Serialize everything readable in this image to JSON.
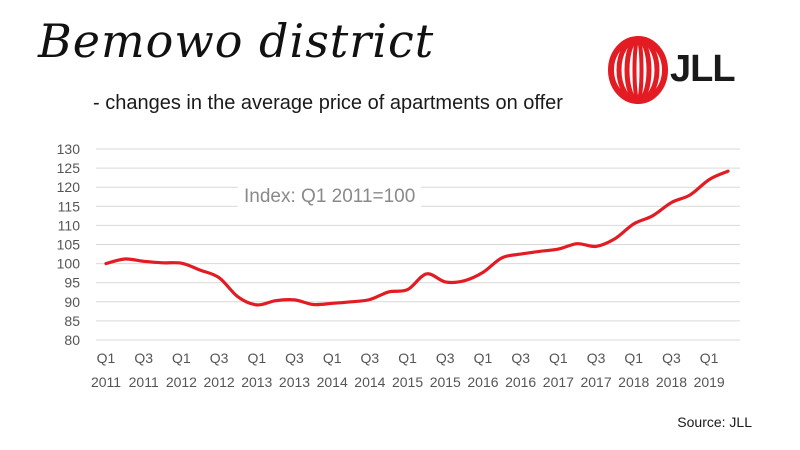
{
  "header": {
    "title": "Bemowo district",
    "subtitle": "- changes in the average price of apartments on offer"
  },
  "logo": {
    "text": "JLL",
    "icon": "jll-logo-icon",
    "color": "#e31b23"
  },
  "source": "Source: JLL",
  "chart_data": {
    "type": "line",
    "annotation": "Index: Q1 2011=100",
    "ylim": [
      80,
      130
    ],
    "yticks": [
      80,
      85,
      90,
      95,
      100,
      105,
      110,
      115,
      120,
      125,
      130
    ],
    "xtick_labels": [
      {
        "q": "Q1",
        "y": "2011"
      },
      {
        "q": "Q3",
        "y": "2011"
      },
      {
        "q": "Q1",
        "y": "2012"
      },
      {
        "q": "Q3",
        "y": "2012"
      },
      {
        "q": "Q1",
        "y": "2013"
      },
      {
        "q": "Q3",
        "y": "2013"
      },
      {
        "q": "Q1",
        "y": "2014"
      },
      {
        "q": "Q3",
        "y": "2014"
      },
      {
        "q": "Q1",
        "y": "2015"
      },
      {
        "q": "Q3",
        "y": "2015"
      },
      {
        "q": "Q1",
        "y": "2016"
      },
      {
        "q": "Q3",
        "y": "2016"
      },
      {
        "q": "Q1",
        "y": "2017"
      },
      {
        "q": "Q3",
        "y": "2017"
      },
      {
        "q": "Q1",
        "y": "2018"
      },
      {
        "q": "Q3",
        "y": "2018"
      },
      {
        "q": "Q1",
        "y": "2019"
      }
    ],
    "categories": [
      "Q1 2011",
      "Q2 2011",
      "Q3 2011",
      "Q4 2011",
      "Q1 2012",
      "Q2 2012",
      "Q3 2012",
      "Q4 2012",
      "Q1 2013",
      "Q2 2013",
      "Q3 2013",
      "Q4 2013",
      "Q1 2014",
      "Q2 2014",
      "Q3 2014",
      "Q4 2014",
      "Q1 2015",
      "Q2 2015",
      "Q3 2015",
      "Q4 2015",
      "Q1 2016",
      "Q2 2016",
      "Q3 2016",
      "Q4 2016",
      "Q1 2017",
      "Q2 2017",
      "Q3 2017",
      "Q4 2017",
      "Q1 2018",
      "Q2 2018",
      "Q3 2018",
      "Q4 2018",
      "Q1 2019",
      "Q2 2019"
    ],
    "series": [
      {
        "color": "#e31b23",
        "values": [
          100,
          101.2,
          100.6,
          100.2,
          100.1,
          98.3,
          96.3,
          91.3,
          89.2,
          90.3,
          90.5,
          89.3,
          89.6,
          90.0,
          90.6,
          92.6,
          93.2,
          97.3,
          95.2,
          95.5,
          97.7,
          101.5,
          102.5,
          103.2,
          103.8,
          105.2,
          104.5,
          106.5,
          110.4,
          112.5,
          116.0,
          118.0,
          122.0,
          124.2
        ]
      }
    ],
    "grid": true,
    "grid_color": "#d9d9d9"
  }
}
